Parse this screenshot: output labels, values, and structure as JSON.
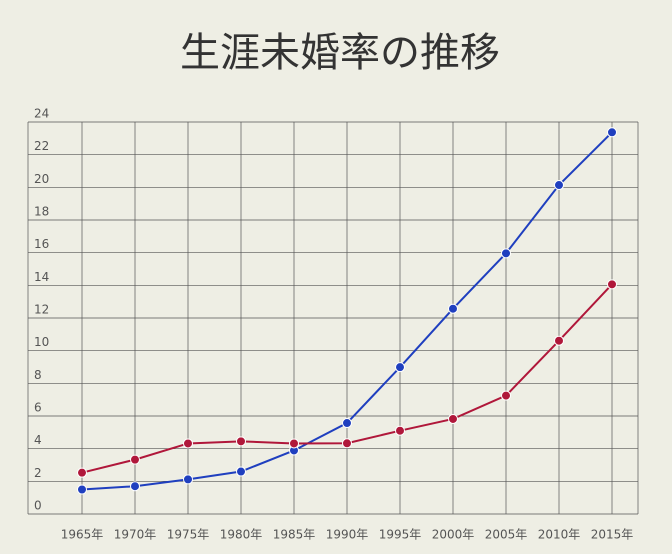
{
  "chart_data": {
    "type": "line",
    "title": "生涯未婚率の推移",
    "categories": [
      "1965年",
      "1970年",
      "1975年",
      "1980年",
      "1985年",
      "1990年",
      "1995年",
      "2000年",
      "2005年",
      "2010年",
      "2015年"
    ],
    "series": [
      {
        "color": "#1f3fbf",
        "values": [
          1.5,
          1.7,
          2.12,
          2.6,
          3.89,
          5.57,
          8.99,
          12.57,
          15.96,
          20.14,
          23.37
        ]
      },
      {
        "color": "#b0173a",
        "values": [
          2.53,
          3.33,
          4.32,
          4.45,
          4.32,
          4.33,
          5.1,
          5.82,
          7.25,
          10.61,
          14.06
        ]
      }
    ],
    "ylim": [
      0,
      24
    ],
    "yticks": [
      0,
      2,
      4,
      6,
      8,
      10,
      12,
      14,
      16,
      18,
      20,
      22,
      24
    ],
    "grid": true
  }
}
